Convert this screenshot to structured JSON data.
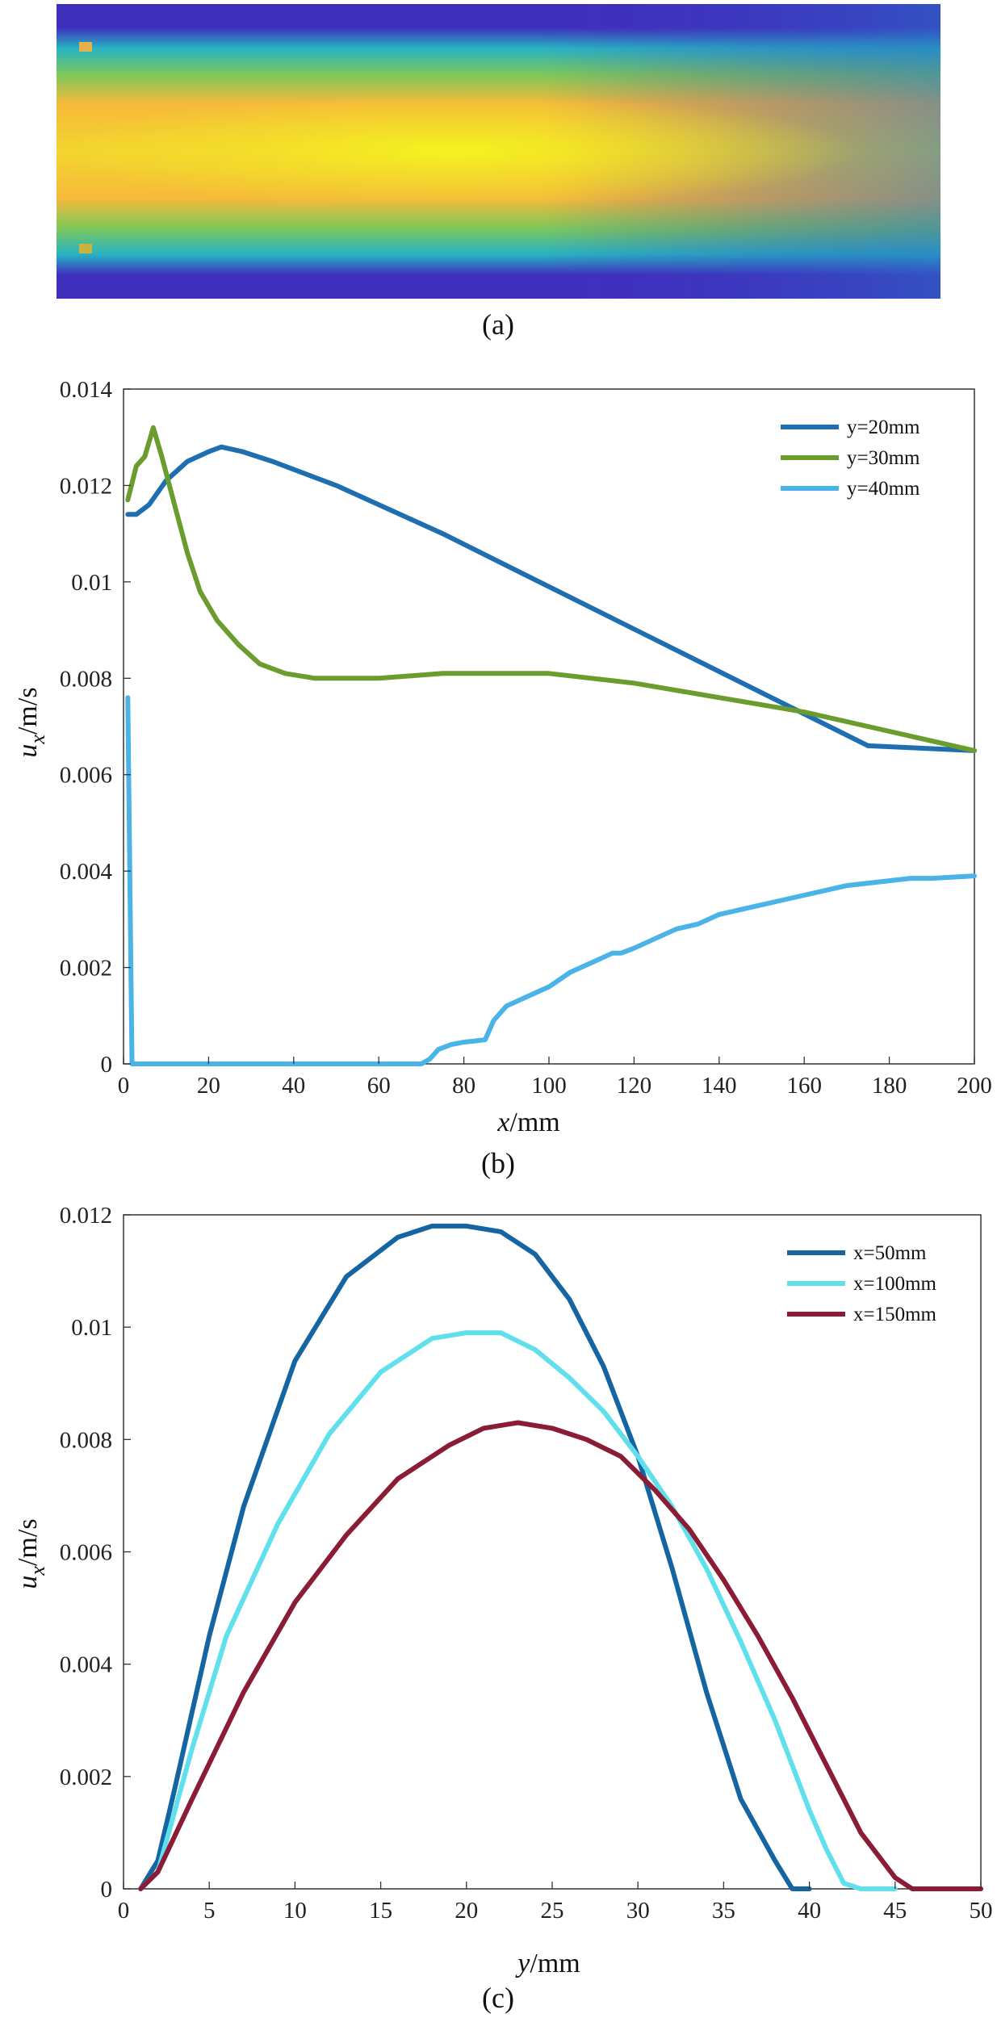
{
  "panels": {
    "a": {
      "caption": "(a)",
      "colormap": [
        "#3f2fbd",
        "#27b3c2",
        "#7ec85a",
        "#f6b93a",
        "#f5ef25"
      ]
    }
  },
  "chart_data": [
    {
      "id": "b",
      "type": "line",
      "caption": "(b)",
      "xlabel_italic": "x",
      "xlabel_rest": "/mm",
      "ylabel_main": "u",
      "ylabel_sub": "x",
      "ylabel_rest": "/m/s",
      "xlim": [
        0,
        200
      ],
      "ylim": [
        0,
        0.014
      ],
      "xticks": [
        0,
        20,
        40,
        60,
        80,
        100,
        120,
        140,
        160,
        180,
        200
      ],
      "yticks": [
        0,
        0.002,
        0.004,
        0.006,
        0.008,
        0.01,
        0.012,
        0.014
      ],
      "ytick_labels": [
        "0",
        "0.002",
        "0.004",
        "0.006",
        "0.008",
        "0.01",
        "0.012",
        "0.014"
      ],
      "legend": "top-right",
      "series": [
        {
          "name": "y=20mm",
          "color": "#1f6fb0",
          "x": [
            1,
            3,
            6,
            10,
            15,
            20,
            23,
            28,
            35,
            50,
            75,
            100,
            125,
            150,
            175,
            200
          ],
          "y": [
            0.0114,
            0.0114,
            0.0116,
            0.0121,
            0.0125,
            0.0127,
            0.0128,
            0.0127,
            0.0125,
            0.012,
            0.011,
            0.0099,
            0.0088,
            0.0077,
            0.0066,
            0.0065
          ]
        },
        {
          "name": "y=30mm",
          "color": "#6a9c2e",
          "x": [
            1,
            3,
            5,
            7,
            9,
            12,
            15,
            18,
            22,
            27,
            32,
            38,
            45,
            50,
            60,
            75,
            85,
            100,
            120,
            140,
            160,
            180,
            200
          ],
          "y": [
            0.0117,
            0.0124,
            0.0126,
            0.0132,
            0.0126,
            0.0116,
            0.0106,
            0.0098,
            0.0092,
            0.0087,
            0.0083,
            0.0081,
            0.008,
            0.008,
            0.008,
            0.0081,
            0.0081,
            0.0081,
            0.0079,
            0.0076,
            0.0073,
            0.0069,
            0.0065
          ]
        },
        {
          "name": "y=40mm",
          "color": "#4ab3e8",
          "x": [
            1,
            2,
            20,
            40,
            60,
            70,
            72,
            74,
            77,
            80,
            85,
            87,
            90,
            95,
            100,
            105,
            110,
            115,
            117,
            120,
            125,
            130,
            135,
            140,
            145,
            150,
            155,
            160,
            170,
            180,
            185,
            190,
            200
          ],
          "y": [
            0.0076,
            0,
            0,
            0,
            0,
            0,
            0.0001,
            0.0003,
            0.0004,
            0.00045,
            0.0005,
            0.0009,
            0.0012,
            0.0014,
            0.0016,
            0.0019,
            0.0021,
            0.0023,
            0.0023,
            0.0024,
            0.0026,
            0.0028,
            0.0029,
            0.0031,
            0.0032,
            0.0033,
            0.0034,
            0.0035,
            0.0037,
            0.0038,
            0.00385,
            0.00385,
            0.0039
          ]
        }
      ]
    },
    {
      "id": "c",
      "type": "line",
      "caption": "(c)",
      "xlabel_italic": "y",
      "xlabel_rest": "/mm",
      "ylabel_main": "u",
      "ylabel_sub": "x",
      "ylabel_rest": "/m/s",
      "xlim": [
        0,
        50
      ],
      "ylim": [
        0,
        0.012
      ],
      "xticks": [
        0,
        5,
        10,
        15,
        20,
        25,
        30,
        35,
        40,
        45,
        50
      ],
      "yticks": [
        0,
        0.002,
        0.004,
        0.006,
        0.008,
        0.01,
        0.012
      ],
      "ytick_labels": [
        "0",
        "0.002",
        "0.004",
        "0.006",
        "0.008",
        "0.01",
        "0.012"
      ],
      "legend": "top-right",
      "series": [
        {
          "name": "x=50mm",
          "color": "#1565a3",
          "x": [
            1,
            2,
            3,
            5,
            7,
            10,
            13,
            16,
            18,
            20,
            22,
            24,
            26,
            28,
            30,
            32,
            34,
            36,
            38,
            39,
            40
          ],
          "y": [
            0,
            0.0005,
            0.0018,
            0.0045,
            0.0068,
            0.0094,
            0.0109,
            0.0116,
            0.0118,
            0.0118,
            0.0117,
            0.0113,
            0.0105,
            0.0093,
            0.0077,
            0.0057,
            0.0035,
            0.0016,
            0.0005,
            0,
            0
          ]
        },
        {
          "name": "x=100mm",
          "color": "#5fe0ec",
          "x": [
            1,
            2,
            4,
            6,
            9,
            12,
            15,
            18,
            20,
            22,
            24,
            26,
            28,
            30,
            32,
            34,
            36,
            38,
            40,
            41,
            42,
            43,
            45
          ],
          "y": [
            0,
            0.0003,
            0.0025,
            0.0045,
            0.0065,
            0.0081,
            0.0092,
            0.0098,
            0.0099,
            0.0099,
            0.0096,
            0.0091,
            0.0085,
            0.0077,
            0.0068,
            0.0057,
            0.0044,
            0.003,
            0.0014,
            0.0007,
            0.0001,
            0,
            0
          ]
        },
        {
          "name": "x=150mm",
          "color": "#8b1c36",
          "x": [
            1,
            2,
            4,
            7,
            10,
            13,
            16,
            19,
            21,
            23,
            25,
            27,
            29,
            31,
            33,
            35,
            37,
            39,
            41,
            43,
            45,
            46,
            48,
            50
          ],
          "y": [
            0,
            0.0003,
            0.0016,
            0.0035,
            0.0051,
            0.0063,
            0.0073,
            0.0079,
            0.0082,
            0.0083,
            0.0082,
            0.008,
            0.0077,
            0.0071,
            0.0064,
            0.0055,
            0.0045,
            0.0034,
            0.0022,
            0.001,
            0.0002,
            0,
            0,
            0
          ]
        }
      ]
    }
  ]
}
